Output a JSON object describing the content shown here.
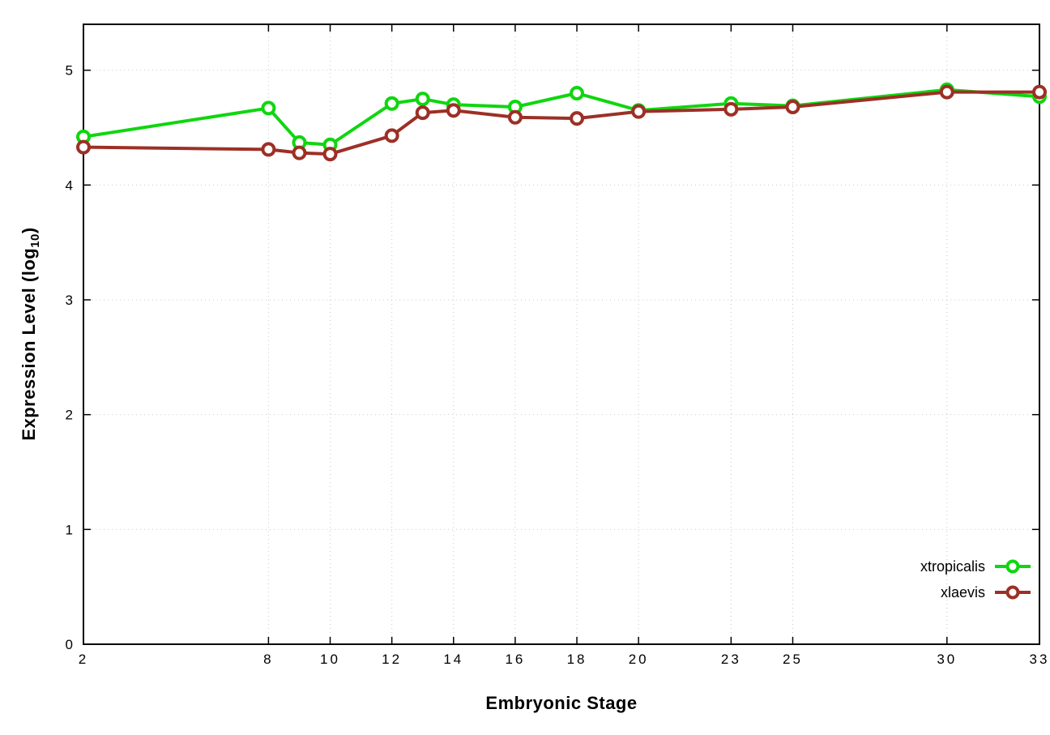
{
  "chart_data": {
    "type": "line",
    "title": "",
    "xlabel": "Embryonic Stage",
    "ylabel_main": "Expression Level (log",
    "ylabel_sub": "10",
    "ylabel_close": ")",
    "x": [
      2,
      8,
      9,
      10,
      12,
      13,
      14,
      16,
      18,
      20,
      23,
      25,
      30,
      33
    ],
    "xticks": [
      2,
      8,
      10,
      12,
      14,
      16,
      18,
      20,
      23,
      25,
      30,
      33
    ],
    "yticks": [
      0,
      1,
      2,
      3,
      4,
      5
    ],
    "xlim": [
      2,
      33
    ],
    "ylim": [
      0,
      5.4
    ],
    "grid": true,
    "legend_position": "inside-bottom-right",
    "background_color": "#ffffff",
    "grid_color": "#c9c9c9",
    "border_color": "#000000",
    "series": [
      {
        "name": "xtropicalis",
        "color": "#0fd60f",
        "values": [
          4.42,
          4.67,
          4.37,
          4.35,
          4.71,
          4.75,
          4.7,
          4.68,
          4.8,
          4.65,
          4.71,
          4.69,
          4.83,
          4.77
        ]
      },
      {
        "name": "xlaevis",
        "color": "#9c3026",
        "values": [
          4.33,
          4.31,
          4.28,
          4.27,
          4.43,
          4.63,
          4.65,
          4.59,
          4.58,
          4.64,
          4.66,
          4.68,
          4.81,
          4.81
        ]
      }
    ]
  }
}
